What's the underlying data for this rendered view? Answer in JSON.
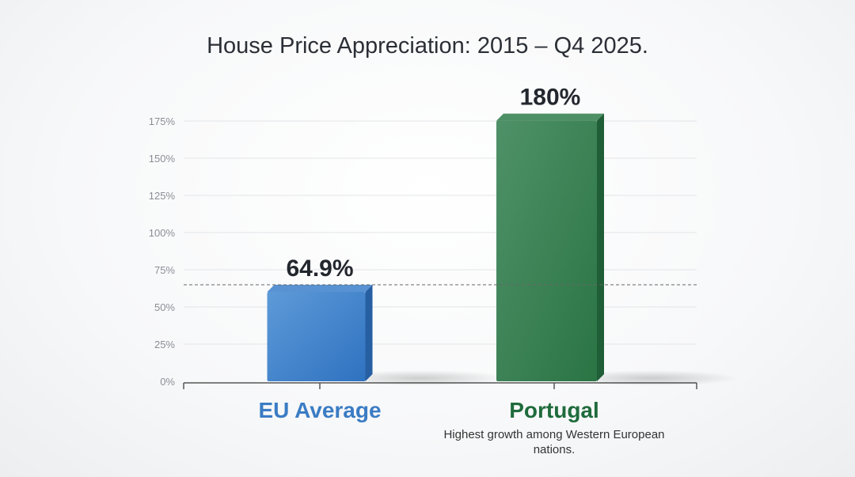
{
  "chart_data": {
    "type": "bar",
    "title": "House Price Appreciation: 2015 – Q4 2025.",
    "categories": [
      "EU Average",
      "Portugal"
    ],
    "values": [
      64.9,
      180
    ],
    "data_labels": [
      "64.9%",
      "180%"
    ],
    "colors": [
      "#3b7fca",
      "#2f7d4a"
    ],
    "category_label_colors": [
      "#3b7cc4",
      "#1f6b3c"
    ],
    "ylim": [
      0,
      175
    ],
    "yticks": [
      "0%",
      "25%",
      "50%",
      "75%",
      "100%",
      "125%",
      "150%",
      "175%"
    ],
    "grid": true,
    "reference_line": {
      "value": 64.9,
      "style": "dashed"
    },
    "annotation": "Highest growth among Western European nations."
  }
}
